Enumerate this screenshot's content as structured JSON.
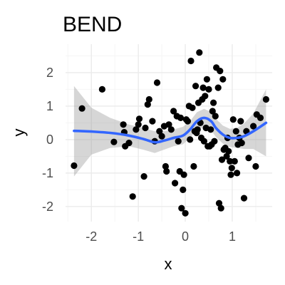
{
  "chart_data": {
    "type": "scatter",
    "title": "BEND",
    "xlabel": "x",
    "ylabel": "y",
    "xlim": [
      -2.55,
      1.85
    ],
    "ylim": [
      -2.45,
      2.85
    ],
    "x_ticks": [
      -2,
      -1,
      0,
      1
    ],
    "x_tick_labels": [
      "-2",
      "-1",
      "0",
      "1"
    ],
    "y_ticks": [
      -2,
      -1,
      0,
      1,
      2
    ],
    "y_tick_labels": [
      "-2",
      "-1",
      "0",
      "1",
      "2"
    ],
    "grid": true,
    "legend": "none",
    "colors": {
      "points": "#000000",
      "smooth_line": "#3366FF",
      "confidence_band": "#999999",
      "grid_major": "#EBEBEB",
      "grid_minor": "#F5F5F5"
    },
    "points": [
      {
        "x": -2.37,
        "y": -0.78
      },
      {
        "x": -2.2,
        "y": 0.93
      },
      {
        "x": -1.77,
        "y": 1.5
      },
      {
        "x": -1.52,
        "y": -0.07
      },
      {
        "x": -1.32,
        "y": 0.45
      },
      {
        "x": -1.3,
        "y": 0.22
      },
      {
        "x": -1.28,
        "y": -0.2
      },
      {
        "x": -1.2,
        "y": -0.1
      },
      {
        "x": -1.12,
        "y": -1.7
      },
      {
        "x": -1.05,
        "y": 0.3
      },
      {
        "x": -1.0,
        "y": 0.45
      },
      {
        "x": -0.98,
        "y": 0.62
      },
      {
        "x": -0.88,
        "y": -1.1
      },
      {
        "x": -0.85,
        "y": 0.35
      },
      {
        "x": -0.8,
        "y": 1.05
      },
      {
        "x": -0.77,
        "y": 1.2
      },
      {
        "x": -0.7,
        "y": 0.55
      },
      {
        "x": -0.65,
        "y": -0.05
      },
      {
        "x": -0.6,
        "y": 1.7
      },
      {
        "x": -0.55,
        "y": 0.25
      },
      {
        "x": -0.5,
        "y": 0.1
      },
      {
        "x": -0.45,
        "y": 0.4
      },
      {
        "x": -0.42,
        "y": -0.8
      },
      {
        "x": -0.4,
        "y": -0.95
      },
      {
        "x": -0.35,
        "y": 0.45
      },
      {
        "x": -0.3,
        "y": 0.3
      },
      {
        "x": -0.25,
        "y": 0.85
      },
      {
        "x": -0.22,
        "y": -1.3
      },
      {
        "x": -0.18,
        "y": 0.7
      },
      {
        "x": -0.15,
        "y": -0.05
      },
      {
        "x": -0.12,
        "y": -0.95
      },
      {
        "x": -0.1,
        "y": 0.65
      },
      {
        "x": -0.08,
        "y": -2.05
      },
      {
        "x": -0.05,
        "y": -1.5
      },
      {
        "x": -0.03,
        "y": -1.05
      },
      {
        "x": 0.0,
        "y": -2.2
      },
      {
        "x": 0.02,
        "y": 0.6
      },
      {
        "x": 0.05,
        "y": 0.55
      },
      {
        "x": 0.08,
        "y": 1.0
      },
      {
        "x": 0.1,
        "y": 0.0
      },
      {
        "x": 0.12,
        "y": 2.35
      },
      {
        "x": 0.15,
        "y": 0.95
      },
      {
        "x": 0.18,
        "y": -0.8
      },
      {
        "x": 0.2,
        "y": 0.25
      },
      {
        "x": 0.22,
        "y": 1.6
      },
      {
        "x": 0.24,
        "y": 0.2
      },
      {
        "x": 0.26,
        "y": 0.3
      },
      {
        "x": 0.28,
        "y": 1.1
      },
      {
        "x": 0.3,
        "y": 2.6
      },
      {
        "x": 0.32,
        "y": 0.5
      },
      {
        "x": 0.34,
        "y": 0.05
      },
      {
        "x": 0.36,
        "y": 1.2
      },
      {
        "x": 0.38,
        "y": 1.55
      },
      {
        "x": 0.4,
        "y": -0.05
      },
      {
        "x": 0.42,
        "y": 1.3
      },
      {
        "x": 0.44,
        "y": 0.35
      },
      {
        "x": 0.46,
        "y": 1.8
      },
      {
        "x": 0.48,
        "y": -0.2
      },
      {
        "x": 0.5,
        "y": 1.5
      },
      {
        "x": 0.52,
        "y": -0.2
      },
      {
        "x": 0.54,
        "y": 0.3
      },
      {
        "x": 0.56,
        "y": -0.15
      },
      {
        "x": 0.58,
        "y": 0.85
      },
      {
        "x": 0.6,
        "y": 1.1
      },
      {
        "x": 0.62,
        "y": -0.05
      },
      {
        "x": 0.64,
        "y": 0.7
      },
      {
        "x": 0.66,
        "y": 2.15
      },
      {
        "x": 0.7,
        "y": 1.55
      },
      {
        "x": 0.72,
        "y": -1.9
      },
      {
        "x": 0.74,
        "y": 2.05
      },
      {
        "x": 0.76,
        "y": -2.05
      },
      {
        "x": 0.78,
        "y": -0.6
      },
      {
        "x": 0.8,
        "y": 1.8
      },
      {
        "x": 0.82,
        "y": -0.3
      },
      {
        "x": 0.85,
        "y": -0.25
      },
      {
        "x": 0.88,
        "y": -0.5
      },
      {
        "x": 0.9,
        "y": 0.05
      },
      {
        "x": 0.92,
        "y": -0.35
      },
      {
        "x": 0.95,
        "y": -0.65
      },
      {
        "x": 0.97,
        "y": -1.05
      },
      {
        "x": 0.99,
        "y": -0.85
      },
      {
        "x": 1.02,
        "y": 0.6
      },
      {
        "x": 1.05,
        "y": -0.65
      },
      {
        "x": 1.08,
        "y": 0.25
      },
      {
        "x": 1.1,
        "y": -1.0
      },
      {
        "x": 1.12,
        "y": -0.15
      },
      {
        "x": 1.15,
        "y": 0.05
      },
      {
        "x": 1.18,
        "y": 0.55
      },
      {
        "x": 1.2,
        "y": -0.1
      },
      {
        "x": 1.25,
        "y": -1.75
      },
      {
        "x": 1.3,
        "y": 0.25
      },
      {
        "x": 1.35,
        "y": -0.55
      },
      {
        "x": 1.45,
        "y": 0.4
      },
      {
        "x": 1.5,
        "y": -0.8
      },
      {
        "x": 1.52,
        "y": 0.75
      },
      {
        "x": 1.6,
        "y": 0.65
      },
      {
        "x": 1.72,
        "y": 1.2
      }
    ],
    "smooth_line": [
      {
        "x": -2.37,
        "y": 0.26
      },
      {
        "x": -2.0,
        "y": 0.24
      },
      {
        "x": -1.6,
        "y": 0.2
      },
      {
        "x": -1.2,
        "y": 0.12
      },
      {
        "x": -0.9,
        "y": 0.02
      },
      {
        "x": -0.65,
        "y": -0.08
      },
      {
        "x": -0.45,
        "y": -0.03
      },
      {
        "x": -0.25,
        "y": 0.05
      },
      {
        "x": -0.05,
        "y": 0.12
      },
      {
        "x": 0.1,
        "y": 0.3
      },
      {
        "x": 0.25,
        "y": 0.55
      },
      {
        "x": 0.4,
        "y": 0.65
      },
      {
        "x": 0.55,
        "y": 0.55
      },
      {
        "x": 0.65,
        "y": 0.35
      },
      {
        "x": 0.8,
        "y": 0.15
      },
      {
        "x": 0.95,
        "y": 0.05
      },
      {
        "x": 1.1,
        "y": 0.05
      },
      {
        "x": 1.25,
        "y": 0.1
      },
      {
        "x": 1.45,
        "y": 0.25
      },
      {
        "x": 1.72,
        "y": 0.5
      }
    ],
    "confidence_band": [
      {
        "x": -2.37,
        "upper": 1.6,
        "lower": -1.1
      },
      {
        "x": -2.0,
        "upper": 0.95,
        "lower": -0.45
      },
      {
        "x": -1.6,
        "upper": 0.65,
        "lower": -0.25
      },
      {
        "x": -1.2,
        "upper": 0.45,
        "lower": -0.2
      },
      {
        "x": -0.9,
        "upper": 0.35,
        "lower": -0.3
      },
      {
        "x": -0.65,
        "upper": 0.25,
        "lower": -0.4
      },
      {
        "x": -0.45,
        "upper": 0.25,
        "lower": -0.3
      },
      {
        "x": -0.25,
        "upper": 0.3,
        "lower": -0.2
      },
      {
        "x": -0.05,
        "upper": 0.38,
        "lower": -0.14
      },
      {
        "x": 0.1,
        "upper": 0.55,
        "lower": 0.05
      },
      {
        "x": 0.25,
        "upper": 0.82,
        "lower": 0.28
      },
      {
        "x": 0.4,
        "upper": 0.92,
        "lower": 0.38
      },
      {
        "x": 0.55,
        "upper": 0.82,
        "lower": 0.28
      },
      {
        "x": 0.65,
        "upper": 0.62,
        "lower": 0.08
      },
      {
        "x": 0.8,
        "upper": 0.42,
        "lower": -0.12
      },
      {
        "x": 0.95,
        "upper": 0.32,
        "lower": -0.22
      },
      {
        "x": 1.1,
        "upper": 0.35,
        "lower": -0.25
      },
      {
        "x": 1.25,
        "upper": 0.48,
        "lower": -0.28
      },
      {
        "x": 1.45,
        "upper": 0.78,
        "lower": -0.28
      },
      {
        "x": 1.72,
        "upper": 1.5,
        "lower": -0.5
      }
    ]
  }
}
